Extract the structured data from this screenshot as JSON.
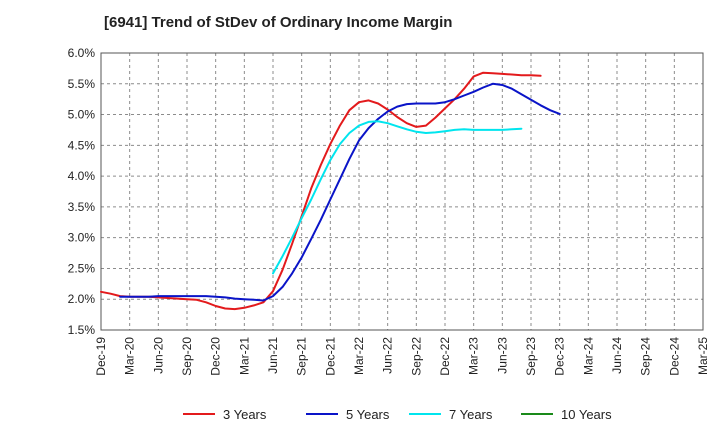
{
  "chart_data": {
    "type": "line",
    "title": "[6941]  Trend of StDev of Ordinary Income Margin",
    "xlabel": "",
    "ylabel": "",
    "x_ticks": [
      "Dec-19",
      "Mar-20",
      "Jun-20",
      "Sep-20",
      "Dec-20",
      "Mar-21",
      "Jun-21",
      "Sep-21",
      "Dec-21",
      "Mar-22",
      "Jun-22",
      "Sep-22",
      "Dec-22",
      "Mar-23",
      "Jun-23",
      "Sep-23",
      "Dec-23",
      "Mar-24",
      "Jun-24",
      "Sep-24",
      "Dec-24",
      "Mar-25"
    ],
    "y_ticks": [
      "1.5%",
      "2.0%",
      "2.5%",
      "3.0%",
      "3.5%",
      "4.0%",
      "4.5%",
      "5.0%",
      "5.5%",
      "6.0%"
    ],
    "ylim": [
      1.5,
      6.0
    ],
    "grid": true,
    "legend_position": "bottom",
    "series": [
      {
        "name": "3 Years",
        "color": "#e31a1c",
        "start_index": 0,
        "values": [
          2.12,
          2.09,
          2.05,
          2.04,
          2.04,
          2.04,
          2.03,
          2.02,
          2.01,
          2.0,
          1.99,
          1.95,
          1.89,
          1.85,
          1.84,
          1.86,
          1.9,
          1.95,
          2.13,
          2.48,
          2.9,
          3.35,
          3.8,
          4.18,
          4.52,
          4.82,
          5.07,
          5.2,
          5.23,
          5.18,
          5.08,
          4.96,
          4.86,
          4.8,
          4.82,
          4.95,
          5.1,
          5.25,
          5.42,
          5.62,
          5.68,
          5.67,
          5.66,
          5.65,
          5.64,
          5.64,
          5.63
        ]
      },
      {
        "name": "5 Years",
        "color": "#0a14c8",
        "start_index": 2,
        "values": [
          2.04,
          2.04,
          2.04,
          2.04,
          2.05,
          2.05,
          2.05,
          2.05,
          2.05,
          2.05,
          2.04,
          2.03,
          2.01,
          2.0,
          1.99,
          1.98,
          2.05,
          2.2,
          2.42,
          2.68,
          2.98,
          3.29,
          3.62,
          3.95,
          4.28,
          4.58,
          4.78,
          4.93,
          5.05,
          5.13,
          5.17,
          5.18,
          5.18,
          5.18,
          5.2,
          5.25,
          5.31,
          5.37,
          5.44,
          5.5,
          5.48,
          5.42,
          5.33,
          5.24,
          5.15,
          5.07,
          5.01
        ]
      },
      {
        "name": "7 Years",
        "color": "#00e5ee",
        "start_index": 18,
        "values": [
          2.42,
          2.7,
          3.0,
          3.32,
          3.62,
          3.95,
          4.26,
          4.52,
          4.7,
          4.82,
          4.88,
          4.89,
          4.86,
          4.81,
          4.76,
          4.72,
          4.7,
          4.71,
          4.73,
          4.75,
          4.76,
          4.75,
          4.75,
          4.75,
          4.75,
          4.76,
          4.77
        ]
      },
      {
        "name": "10 Years",
        "color": "#1a8a1a",
        "start_index": 0,
        "values": []
      }
    ]
  }
}
